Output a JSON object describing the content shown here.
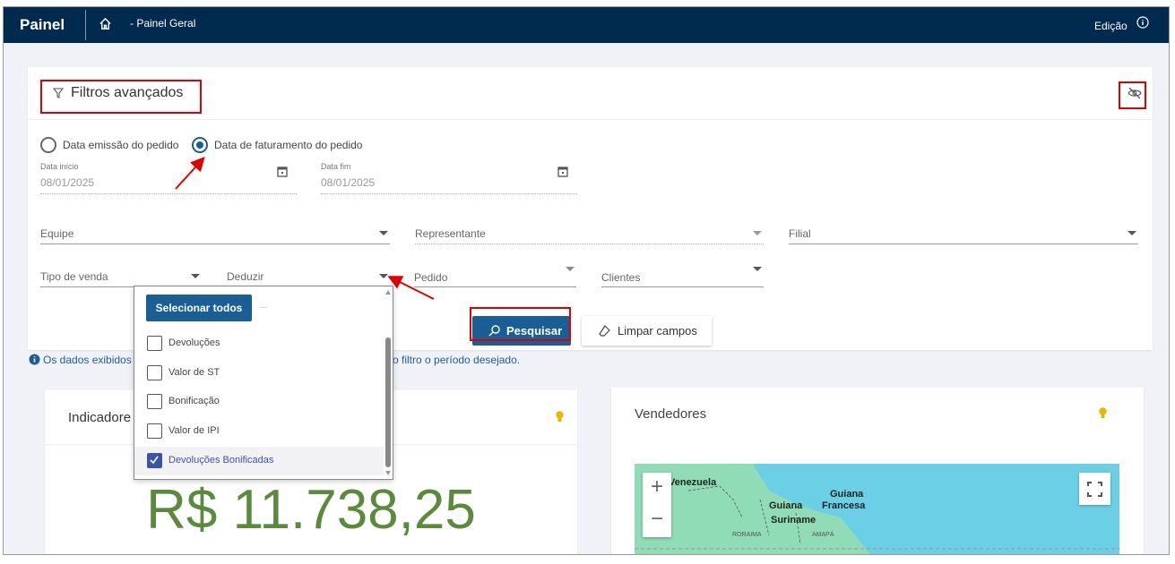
{
  "header": {
    "app_title": "Painel",
    "breadcrumb": "- Painel Geral",
    "edit_label": "Edição",
    "home_icon": "home-icon",
    "info_icon": "info-icon"
  },
  "filters": {
    "title": "Filtros avançados",
    "date_type_options": [
      {
        "label": "Data emissão do pedido",
        "selected": false
      },
      {
        "label": "Data de faturamento do pedido",
        "selected": true
      }
    ],
    "start_date": {
      "label": "Data início",
      "value": "08/01/2025"
    },
    "end_date": {
      "label": "Data fim",
      "value": "08/01/2025"
    },
    "selects": {
      "equipe": "Equipe",
      "representante": "Representante",
      "filial": "Filial",
      "tipo_venda": "Tipo de venda",
      "deduzir": "Deduzir",
      "pedido": "Pedido",
      "clientes": "Clientes"
    },
    "search_button": "Pesquisar",
    "clear_button": "Limpar campos"
  },
  "deduzir_dropdown": {
    "select_all": "Selecionar todos",
    "ellipsis": "...",
    "options": [
      {
        "label": "Devoluções",
        "checked": false
      },
      {
        "label": "Valor de ST",
        "checked": false
      },
      {
        "label": "Bonificação",
        "checked": false
      },
      {
        "label": "Valor de IPI",
        "checked": false
      },
      {
        "label": "Devoluções Bonificadas",
        "checked": true
      }
    ]
  },
  "info_note": {
    "part1": "Os dados exibidos",
    "part2": "o filtro o período desejado."
  },
  "indicators": {
    "title": "Indicadore",
    "value": "R$ 11.738,25",
    "value_color": "#5b8a3c"
  },
  "sellers": {
    "title": "Vendedores",
    "map_labels": {
      "venezuela": "Venezuela",
      "guiana": "Guiana",
      "suriname": "Suriname",
      "guiana_francesa_1": "Guiana",
      "guiana_francesa_2": "Francesa",
      "roraima": "RORAIMA",
      "amapa": "AMAPÁ"
    },
    "zoom_in": "+",
    "zoom_out": "−"
  },
  "colors": {
    "header": "#002a4e",
    "primary": "#1a5e96",
    "annotation": "#e00000",
    "bulb": "#e6b800"
  }
}
